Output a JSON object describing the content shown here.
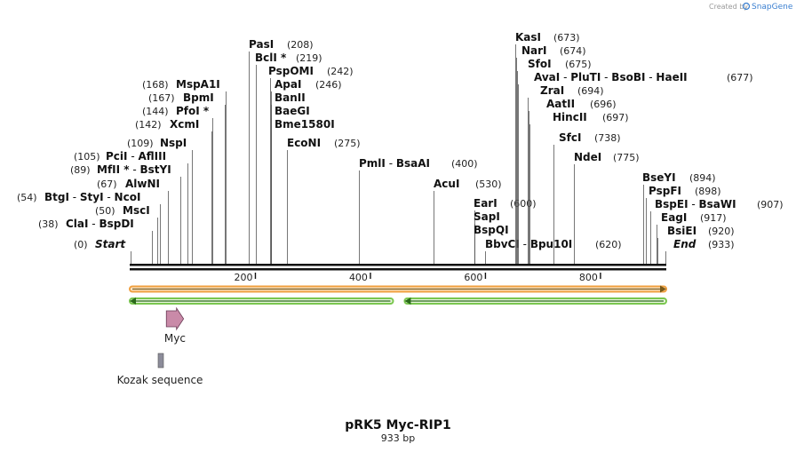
{
  "header": {
    "created_by": "Created by",
    "brand": "SnapGene",
    "logo_color": "#3a7fd0"
  },
  "map": {
    "title": "pRK5 Myc-RIP1",
    "length_label": "933 bp",
    "length_bp": 933,
    "ticks": [
      {
        "bp": 200,
        "label": "200"
      },
      {
        "bp": 400,
        "label": "400"
      },
      {
        "bp": 600,
        "label": "600"
      },
      {
        "bp": 800,
        "label": "800"
      }
    ],
    "sites": [
      {
        "names": [
          "Start"
        ],
        "pos": "(0)",
        "bp": 0,
        "terminal": true
      },
      {
        "names": [
          "ClaI",
          "BspDI"
        ],
        "pos": "(38)",
        "bp": 38
      },
      {
        "names": [
          "MscI"
        ],
        "pos": "(50)",
        "bp": 50
      },
      {
        "names": [
          "BtgI",
          "StyI",
          "NcoI"
        ],
        "pos": "(54)",
        "bp": 54
      },
      {
        "names": [
          "AlwNI"
        ],
        "pos": "(67)",
        "bp": 67
      },
      {
        "names": [
          "MfII *",
          "BstYI"
        ],
        "pos": "(89)",
        "bp": 89
      },
      {
        "names": [
          "PciI",
          "AflIII"
        ],
        "pos": "(105)",
        "bp": 105
      },
      {
        "names": [
          "NspI"
        ],
        "pos": "(109)",
        "bp": 109
      },
      {
        "names": [
          "XcmI"
        ],
        "pos": "(142)",
        "bp": 142
      },
      {
        "names": [
          "PfoI *"
        ],
        "pos": "(144)",
        "bp": 144
      },
      {
        "names": [
          "BpmI"
        ],
        "pos": "(167)",
        "bp": 167
      },
      {
        "names": [
          "MspA1I"
        ],
        "pos": "(168)",
        "bp": 168
      },
      {
        "names": [
          "PasI"
        ],
        "pos": "(208)",
        "bp": 208
      },
      {
        "names": [
          "BclI *"
        ],
        "pos": "(219)",
        "bp": 219
      },
      {
        "names": [
          "PspOMI"
        ],
        "pos": "(242)",
        "bp": 242
      },
      {
        "names": [
          "ApaI"
        ],
        "pos": "(246)",
        "bp": 246
      },
      {
        "names": [
          "BanII"
        ],
        "pos": "",
        "bp": 246
      },
      {
        "names": [
          "BaeGI"
        ],
        "pos": "",
        "bp": 246
      },
      {
        "names": [
          "Bme1580I"
        ],
        "pos": "",
        "bp": 246
      },
      {
        "names": [
          "EcoNI"
        ],
        "pos": "(275)",
        "bp": 275
      },
      {
        "names": [
          "PmlI",
          "BsaAI"
        ],
        "pos": "(400)",
        "bp": 400
      },
      {
        "names": [
          "AcuI"
        ],
        "pos": "(530)",
        "bp": 530
      },
      {
        "names": [
          "EarI"
        ],
        "pos": "(600)",
        "bp": 600
      },
      {
        "names": [
          "SapI"
        ],
        "pos": "",
        "bp": 600
      },
      {
        "names": [
          "BspQI"
        ],
        "pos": "",
        "bp": 600
      },
      {
        "names": [
          "BbvCI",
          "Bpu10I"
        ],
        "pos": "(620)",
        "bp": 620
      },
      {
        "names": [
          "KasI"
        ],
        "pos": "(673)",
        "bp": 673
      },
      {
        "names": [
          "NarI"
        ],
        "pos": "(674)",
        "bp": 674
      },
      {
        "names": [
          "SfoI"
        ],
        "pos": "(675)",
        "bp": 675
      },
      {
        "names": [
          "AvaI",
          "PluTI",
          "BsoBI",
          "HaeII"
        ],
        "pos": "(677)",
        "bp": 677
      },
      {
        "names": [
          "ZraI"
        ],
        "pos": "(694)",
        "bp": 694
      },
      {
        "names": [
          "AatII"
        ],
        "pos": "(696)",
        "bp": 696
      },
      {
        "names": [
          "HincII"
        ],
        "pos": "(697)",
        "bp": 697
      },
      {
        "names": [
          "SfcI"
        ],
        "pos": "(738)",
        "bp": 738
      },
      {
        "names": [
          "NdeI"
        ],
        "pos": "(775)",
        "bp": 775
      },
      {
        "names": [
          "BseYI"
        ],
        "pos": "(894)",
        "bp": 894
      },
      {
        "names": [
          "PspFI"
        ],
        "pos": "(898)",
        "bp": 898
      },
      {
        "names": [
          "BspEI",
          "BsaWI"
        ],
        "pos": "(907)",
        "bp": 907
      },
      {
        "names": [
          "EagI"
        ],
        "pos": "(917)",
        "bp": 917
      },
      {
        "names": [
          "BsiEI"
        ],
        "pos": "(920)",
        "bp": 920
      },
      {
        "names": [
          "End"
        ],
        "pos": "(933)",
        "bp": 933,
        "terminal": true
      }
    ],
    "bands": [
      {
        "name": "orange-band",
        "start_bp": 0,
        "end_bp": 933,
        "direction": "forward",
        "color": "#f0a040"
      },
      {
        "name": "green-band-left",
        "start_bp": 0,
        "end_bp": 458,
        "direction": "reverse",
        "color": "#7ac74f"
      },
      {
        "name": "green-band-right",
        "start_bp": 478,
        "end_bp": 933,
        "direction": "reverse",
        "color": "#7ac74f"
      }
    ],
    "features": [
      {
        "label": "Myc",
        "start_bp": 56,
        "end_bp": 86,
        "kind": "arrow",
        "color": "#c98aa8"
      },
      {
        "label": "Kozak sequence",
        "start_bp": 50,
        "end_bp": 59,
        "kind": "box",
        "color": "#8c8c9a"
      }
    ]
  }
}
